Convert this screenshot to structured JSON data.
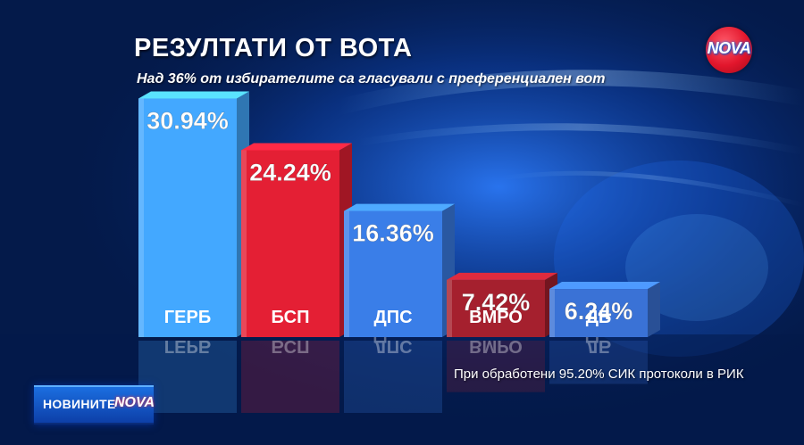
{
  "title": "РЕЗУЛТАТИ ОТ ВОТА",
  "subtitle": "Над 36% от избирателите са гласували с преференциален вот",
  "footnote": "При обработени 95.20% СИК протоколи в РИК",
  "logo": {
    "text": "NOVA"
  },
  "brand": {
    "prefix": "НОВИНИТЕ",
    "nova": "NOVA"
  },
  "colors": {
    "blue": "#3a7ee8",
    "red": "#e41f34",
    "darkred": "#a5202e",
    "bg": "#041a4a"
  },
  "chart_data": {
    "type": "bar",
    "categories": [
      "ГЕРБ",
      "БСП",
      "ДПС",
      "ВМРО",
      "ДБ"
    ],
    "values": [
      30.94,
      24.24,
      16.36,
      7.42,
      6.24
    ],
    "value_labels": [
      "30.94%",
      "24.24%",
      "16.36%",
      "7.42%",
      "6.24%"
    ],
    "bar_colors": [
      "#43a8ff",
      "#e41f34",
      "#3a7ee8",
      "#a5202e",
      "#3a72d6"
    ],
    "ylim": [
      0,
      31
    ],
    "grid": false,
    "legend": "none"
  }
}
